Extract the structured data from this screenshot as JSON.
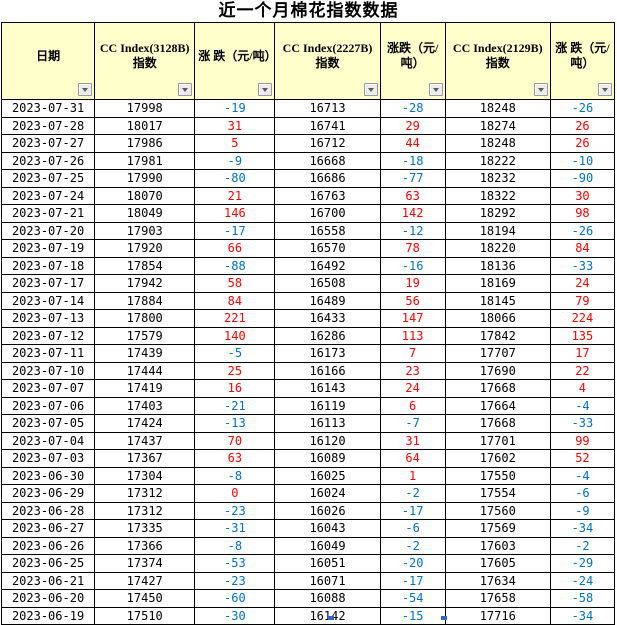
{
  "title": "近一个月棉花指数数据",
  "colors": {
    "pos-color": "#FF0000",
    "neg-color": "#0070C0",
    "header-bg": "#FFFFCC",
    "grid-color": "#000000"
  },
  "table": {
    "columns": [
      {
        "label": "日期"
      },
      {
        "label": "CC Index(3128B) 指数"
      },
      {
        "label": "涨 跌（元/吨）"
      },
      {
        "label": "CC Index(2227B) 指数"
      },
      {
        "label": "涨跌（元/吨）"
      },
      {
        "label": "CC Index(2129B) 指数"
      },
      {
        "label": "涨 跌（元/吨）"
      }
    ],
    "rows": [
      [
        "2023-07-31",
        17998,
        -19,
        16713,
        -28,
        18248,
        -26
      ],
      [
        "2023-07-28",
        18017,
        31,
        16741,
        29,
        18274,
        26
      ],
      [
        "2023-07-27",
        17986,
        5,
        16712,
        44,
        18248,
        26
      ],
      [
        "2023-07-26",
        17981,
        -9,
        16668,
        -18,
        18222,
        -10
      ],
      [
        "2023-07-25",
        17990,
        -80,
        16686,
        -77,
        18232,
        -90
      ],
      [
        "2023-07-24",
        18070,
        21,
        16763,
        63,
        18322,
        30
      ],
      [
        "2023-07-21",
        18049,
        146,
        16700,
        142,
        18292,
        98
      ],
      [
        "2023-07-20",
        17903,
        -17,
        16558,
        -12,
        18194,
        -26
      ],
      [
        "2023-07-19",
        17920,
        66,
        16570,
        78,
        18220,
        84
      ],
      [
        "2023-07-18",
        17854,
        -88,
        16492,
        -16,
        18136,
        -33
      ],
      [
        "2023-07-17",
        17942,
        58,
        16508,
        19,
        18169,
        24
      ],
      [
        "2023-07-14",
        17884,
        84,
        16489,
        56,
        18145,
        79
      ],
      [
        "2023-07-13",
        17800,
        221,
        16433,
        147,
        18066,
        224
      ],
      [
        "2023-07-12",
        17579,
        140,
        16286,
        113,
        17842,
        135
      ],
      [
        "2023-07-11",
        17439,
        -5,
        16173,
        7,
        17707,
        17
      ],
      [
        "2023-07-10",
        17444,
        25,
        16166,
        23,
        17690,
        22
      ],
      [
        "2023-07-07",
        17419,
        16,
        16143,
        24,
        17668,
        4
      ],
      [
        "2023-07-06",
        17403,
        -21,
        16119,
        6,
        17664,
        -4
      ],
      [
        "2023-07-05",
        17424,
        -13,
        16113,
        -7,
        17668,
        -33
      ],
      [
        "2023-07-04",
        17437,
        70,
        16120,
        31,
        17701,
        99
      ],
      [
        "2023-07-03",
        17367,
        63,
        16089,
        64,
        17602,
        52
      ],
      [
        "2023-06-30",
        17304,
        -8,
        16025,
        1,
        17550,
        -4
      ],
      [
        "2023-06-29",
        17312,
        0,
        16024,
        -2,
        17554,
        -6
      ],
      [
        "2023-06-28",
        17312,
        -23,
        16026,
        -17,
        17560,
        -9
      ],
      [
        "2023-06-27",
        17335,
        -31,
        16043,
        -6,
        17569,
        -34
      ],
      [
        "2023-06-26",
        17366,
        -8,
        16049,
        -2,
        17603,
        -2
      ],
      [
        "2023-06-25",
        17374,
        -53,
        16051,
        -20,
        17605,
        -29
      ],
      [
        "2023-06-21",
        17427,
        -23,
        16071,
        -17,
        17634,
        -24
      ],
      [
        "2023-06-20",
        17450,
        -60,
        16088,
        -54,
        17658,
        -58
      ],
      [
        "2023-06-19",
        17510,
        -30,
        16142,
        -15,
        17716,
        -34
      ]
    ]
  }
}
